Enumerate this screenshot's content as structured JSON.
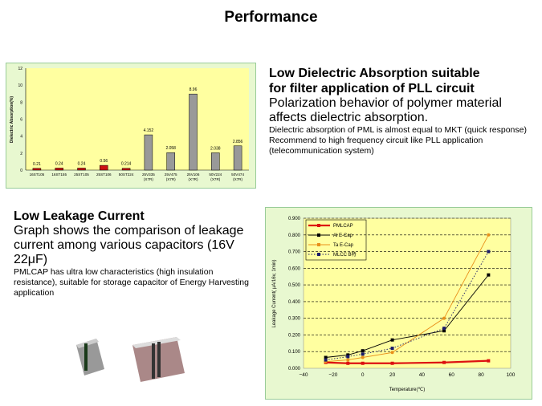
{
  "title": "Performance",
  "section1": {
    "heading_line1": "Low Dielectric  Absorption  suitable",
    "heading_line2": "for filter  application  of PLL circuit",
    "subheading": "Polarization behavior of polymer material affects dielectric absorption.",
    "detail1": "Dielectric absorption of PML is almost equal to MKT (quick response)",
    "detail2": "Recommend to high frequency circuit like PLL application (telecommunication system)"
  },
  "section2": {
    "heading": "Low Leakage Current",
    "subheading": "Graph shows the comparison of leakage current among various capacitors (16V 22μF)",
    "detail": "PMLCAP has ultra low characteristics (high insulation resistance), suitable for storage capacitor of Energy Harvesting application"
  },
  "chart_data": [
    {
      "type": "bar",
      "title": "",
      "ylabel": "Dielectric Absorption(%)",
      "xlabel": "",
      "ylim": [
        0,
        12
      ],
      "yticks": [
        "0",
        "2",
        "4",
        "6",
        "8",
        "10",
        "12"
      ],
      "categories": [
        "16ST105",
        "16ST155",
        "25ST105",
        "25ST106",
        "50ST224",
        "25V335 (X7R)",
        "25V475 (X7R)",
        "25V106 (X7R)",
        "50V224 (X7R)",
        "50V474 (X7R)"
      ],
      "values": [
        0.21,
        0.24,
        0.24,
        0.56,
        0.214,
        4.152,
        2.058,
        8.96,
        2.038,
        2.856
      ],
      "labels": [
        "0.21",
        "0.24",
        "0.24",
        "0.56",
        "0.214",
        "4.152",
        "2.058",
        "8.96",
        "2.038",
        "2.856"
      ],
      "colors": [
        "#cc1111",
        "#cc1111",
        "#cc1111",
        "#cc1111",
        "#cc1111",
        "#999999",
        "#999999",
        "#999999",
        "#999999",
        "#999999"
      ]
    },
    {
      "type": "line",
      "xlabel": "Temperature(℃)",
      "ylabel": "Leakage Current( μA/16v, 1min)",
      "xlim": [
        -40,
        100
      ],
      "ylim": [
        0,
        0.9
      ],
      "xticks": [
        "−40",
        "−20",
        "0",
        "20",
        "40",
        "60",
        "80",
        "100"
      ],
      "yticks": [
        "0.000",
        "0.100",
        "0.200",
        "0.300",
        "0.400",
        "0.500",
        "0.600",
        "0.700",
        "0.800",
        "0.900"
      ],
      "legend_position": "top-left",
      "x": [
        -25,
        -10,
        0,
        20,
        55,
        85
      ],
      "series": [
        {
          "name": "PMLCAP",
          "color": "#dd1111",
          "values": [
            0.035,
            0.03,
            0.03,
            0.03,
            0.035,
            0.045
          ]
        },
        {
          "name": "Al E-Cap",
          "color": "#000000",
          "values": [
            0.065,
            0.08,
            0.105,
            0.17,
            0.225,
            0.56
          ]
        },
        {
          "name": "Ta E-Cap",
          "color": "#e8901a",
          "values": [
            0.04,
            0.05,
            0.065,
            0.095,
            0.3,
            0.8
          ]
        },
        {
          "name": "MLCC  B特",
          "color": "#1a1a6a",
          "values": [
            0.05,
            0.07,
            0.085,
            0.12,
            0.24,
            0.7
          ]
        }
      ]
    }
  ]
}
